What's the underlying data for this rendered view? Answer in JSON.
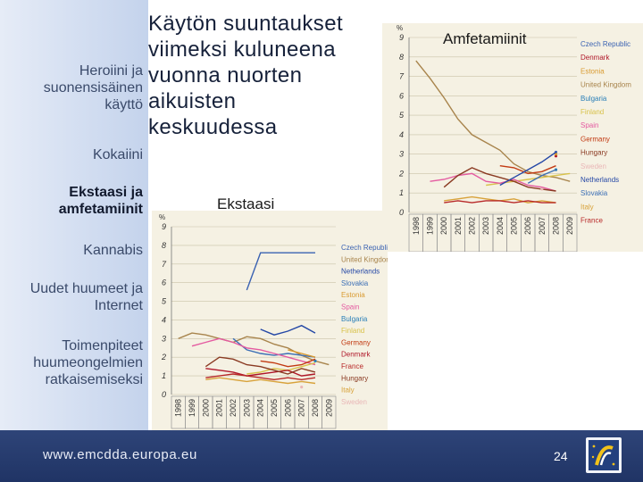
{
  "slide": {
    "title": "Käytön suuntaukset\nviimeksi kuluneena\nvuonna nuorten\naikuisten\nkeskuudessa",
    "page_number": "24"
  },
  "sidebar": {
    "items": [
      {
        "label": "Heroiini ja\nsuonensisäinen\nkäyttö"
      },
      {
        "label": "Kokaiini"
      },
      {
        "label": "Ekstaasi ja\namfetamiinit"
      },
      {
        "label": "Kannabis"
      },
      {
        "label": "Uudet huumeet ja\nInternet"
      },
      {
        "label": "Toimenpiteet\nhuumeongelmien\nratkaisemiseksi"
      }
    ]
  },
  "footer": {
    "url": "www.emcdda.europa.eu"
  },
  "colors": {
    "sidebar_bg": "#d3def1",
    "footer_bg": "#263b6e",
    "chart_bg": "#f5f1e3"
  },
  "chart_data": [
    {
      "type": "line",
      "title": "Amfetamiinit",
      "ylabel": "%",
      "ylim": [
        0,
        9
      ],
      "yticks": [
        "0",
        "1",
        "2",
        "3",
        "4",
        "5",
        "6",
        "7",
        "8",
        "9"
      ],
      "categories": [
        "1998",
        "1999",
        "2000",
        "2001",
        "2002",
        "2003",
        "2004",
        "2005",
        "2006",
        "2007",
        "2008",
        "2009"
      ],
      "series": [
        {
          "name": "Czech Republic",
          "color": "#3a62b2",
          "values": [
            null,
            null,
            null,
            null,
            null,
            null,
            null,
            null,
            null,
            null,
            3.1,
            null
          ]
        },
        {
          "name": "Denmark",
          "color": "#b0182a",
          "values": [
            null,
            null,
            null,
            null,
            null,
            null,
            null,
            null,
            null,
            null,
            2.9,
            null
          ]
        },
        {
          "name": "Estonia",
          "color": "#d99a30",
          "values": [
            null,
            null,
            null,
            null,
            null,
            null,
            null,
            null,
            null,
            null,
            3.0,
            null
          ]
        },
        {
          "name": "United Kingdom",
          "color": "#a8844c",
          "values": [
            7.8,
            6.9,
            5.9,
            4.8,
            4.0,
            3.6,
            3.2,
            2.5,
            2.1,
            1.9,
            1.8,
            1.6
          ]
        },
        {
          "name": "Bulgaria",
          "color": "#2a7fb8",
          "values": [
            null,
            null,
            null,
            null,
            null,
            null,
            null,
            null,
            null,
            null,
            2.2,
            null
          ]
        },
        {
          "name": "Finland",
          "color": "#d8c24a",
          "values": [
            null,
            null,
            null,
            null,
            null,
            1.4,
            1.5,
            1.6,
            1.7,
            1.8,
            1.9,
            2.0
          ]
        },
        {
          "name": "Spain",
          "color": "#e45aa0",
          "values": [
            null,
            1.6,
            1.7,
            1.9,
            2.0,
            1.6,
            1.5,
            1.7,
            1.4,
            1.3,
            1.1,
            null
          ]
        },
        {
          "name": "Germany",
          "color": "#c23a12",
          "values": [
            null,
            null,
            null,
            null,
            null,
            null,
            2.4,
            2.3,
            2.0,
            2.1,
            2.4,
            null
          ]
        },
        {
          "name": "Hungary",
          "color": "#8a3a22",
          "values": [
            null,
            null,
            1.3,
            1.9,
            2.3,
            2.0,
            1.8,
            1.6,
            1.3,
            1.2,
            1.1,
            null
          ]
        },
        {
          "name": "Sweden",
          "color": "#e9b7b7",
          "values": [
            null,
            null,
            null,
            null,
            null,
            null,
            null,
            null,
            null,
            1.2,
            null,
            null
          ]
        },
        {
          "name": "Netherlands",
          "color": "#2548a6",
          "values": [
            null,
            null,
            null,
            null,
            null,
            null,
            1.4,
            1.8,
            2.2,
            2.6,
            3.1,
            null
          ]
        },
        {
          "name": "Slovakia",
          "color": "#3c6fb5",
          "values": [
            null,
            null,
            null,
            null,
            null,
            null,
            null,
            null,
            1.5,
            1.9,
            2.2,
            null
          ]
        },
        {
          "name": "Italy",
          "color": "#d8a23a",
          "values": [
            null,
            null,
            0.6,
            0.7,
            0.8,
            0.7,
            0.6,
            0.7,
            0.5,
            0.6,
            0.5,
            null
          ]
        },
        {
          "name": "France",
          "color": "#b82828",
          "values": [
            null,
            null,
            0.5,
            0.6,
            0.5,
            0.6,
            0.6,
            0.5,
            0.6,
            0.5,
            0.5,
            null
          ]
        }
      ]
    },
    {
      "type": "line",
      "title": "Ekstaasi",
      "ylabel": "%",
      "ylim": [
        0,
        9
      ],
      "yticks": [
        "0",
        "1",
        "2",
        "3",
        "4",
        "5",
        "6",
        "7",
        "8",
        "9"
      ],
      "categories": [
        "1998",
        "1999",
        "2000",
        "2001",
        "2002",
        "2003",
        "2004",
        "2005",
        "2006",
        "2007",
        "2008",
        "2009"
      ],
      "series": [
        {
          "name": "Czech Republic",
          "color": "#3a62b2",
          "values": [
            null,
            null,
            null,
            null,
            null,
            5.6,
            7.6,
            7.6,
            7.6,
            7.6,
            7.6,
            null
          ]
        },
        {
          "name": "United Kingdom",
          "color": "#a8844c",
          "values": [
            3.0,
            3.3,
            3.2,
            3.0,
            2.8,
            3.1,
            3.0,
            2.7,
            2.5,
            2.1,
            1.8,
            1.6
          ]
        },
        {
          "name": "Netherlands",
          "color": "#2548a6",
          "values": [
            null,
            null,
            null,
            null,
            null,
            null,
            3.5,
            3.2,
            3.4,
            3.7,
            3.3,
            null
          ]
        },
        {
          "name": "Slovakia",
          "color": "#3c6fb5",
          "values": [
            null,
            null,
            null,
            null,
            3.0,
            2.4,
            2.2,
            2.1,
            2.2,
            2.1,
            2.0,
            null
          ]
        },
        {
          "name": "Estonia",
          "color": "#d99a30",
          "values": [
            null,
            null,
            null,
            null,
            null,
            null,
            null,
            null,
            2.4,
            2.2,
            2.0,
            null
          ]
        },
        {
          "name": "Spain",
          "color": "#e45aa0",
          "values": [
            null,
            2.6,
            2.8,
            3.0,
            2.8,
            2.5,
            2.4,
            2.2,
            2.0,
            1.8,
            1.6,
            null
          ]
        },
        {
          "name": "Bulgaria",
          "color": "#2a7fb8",
          "values": [
            null,
            null,
            null,
            null,
            null,
            null,
            null,
            null,
            null,
            null,
            1.8,
            null
          ]
        },
        {
          "name": "Finland",
          "color": "#d8c24a",
          "values": [
            null,
            null,
            null,
            null,
            null,
            1.1,
            1.2,
            1.4,
            1.3,
            1.5,
            1.7,
            null
          ]
        },
        {
          "name": "Germany",
          "color": "#c23a12",
          "values": [
            null,
            null,
            null,
            null,
            null,
            null,
            1.8,
            1.7,
            1.5,
            1.6,
            1.9,
            null
          ]
        },
        {
          "name": "Denmark",
          "color": "#b0182a",
          "values": [
            null,
            null,
            1.4,
            1.3,
            1.2,
            1.0,
            1.1,
            1.2,
            1.3,
            1.0,
            1.1,
            null
          ]
        },
        {
          "name": "France",
          "color": "#b82828",
          "values": [
            null,
            null,
            0.9,
            1.0,
            1.1,
            1.0,
            0.9,
            0.8,
            0.9,
            0.8,
            0.9,
            null
          ]
        },
        {
          "name": "Hungary",
          "color": "#8a3a22",
          "values": [
            null,
            null,
            1.5,
            2.0,
            1.9,
            1.6,
            1.5,
            1.3,
            1.1,
            1.4,
            1.2,
            null
          ]
        },
        {
          "name": "Italy",
          "color": "#d8a23a",
          "values": [
            null,
            null,
            0.8,
            0.9,
            0.8,
            0.7,
            0.8,
            0.7,
            0.6,
            0.7,
            0.6,
            null
          ]
        },
        {
          "name": "Sweden",
          "color": "#e9b7b7",
          "values": [
            null,
            null,
            null,
            null,
            null,
            null,
            null,
            null,
            null,
            0.4,
            null,
            null
          ]
        }
      ]
    }
  ]
}
